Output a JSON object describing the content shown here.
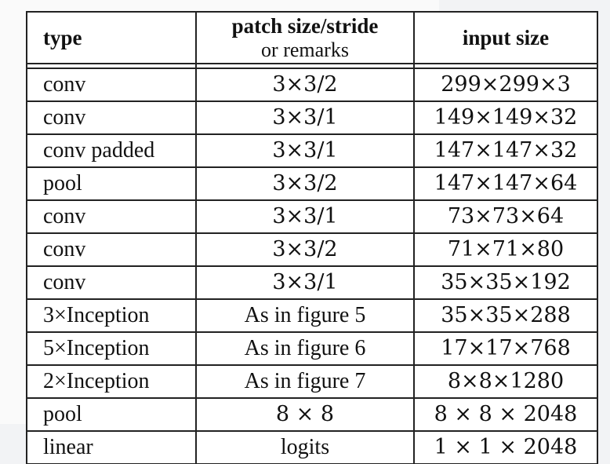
{
  "table": {
    "headers": {
      "type": "type",
      "patch_line1": "patch size/stride",
      "patch_line2": "or remarks",
      "input_size": "input size"
    },
    "rows": [
      {
        "type": "conv",
        "patch": "3×3/2",
        "input": "299×299×3"
      },
      {
        "type": "conv",
        "patch": "3×3/1",
        "input": "149×149×32"
      },
      {
        "type": "conv padded",
        "patch": "3×3/1",
        "input": "147×147×32"
      },
      {
        "type": "pool",
        "patch": "3×3/2",
        "input": "147×147×64"
      },
      {
        "type": "conv",
        "patch": "3×3/1",
        "input": "73×73×64"
      },
      {
        "type": "conv",
        "patch": "3×3/2",
        "input": "71×71×80"
      },
      {
        "type": "conv",
        "patch": "3×3/1",
        "input": "35×35×192"
      },
      {
        "type": "3×Inception",
        "patch": "As in figure 5",
        "input": "35×35×288"
      },
      {
        "type": "5×Inception",
        "patch": "As in figure 6",
        "input": "17×17×768"
      },
      {
        "type": "2×Inception",
        "patch": "As in figure 7",
        "input": "8×8×1280"
      },
      {
        "type": "pool",
        "patch": "8 × 8",
        "input": "8 × 8 × 2048"
      },
      {
        "type": "linear",
        "patch": "logits",
        "input": "1 × 1 × 2048"
      }
    ]
  }
}
